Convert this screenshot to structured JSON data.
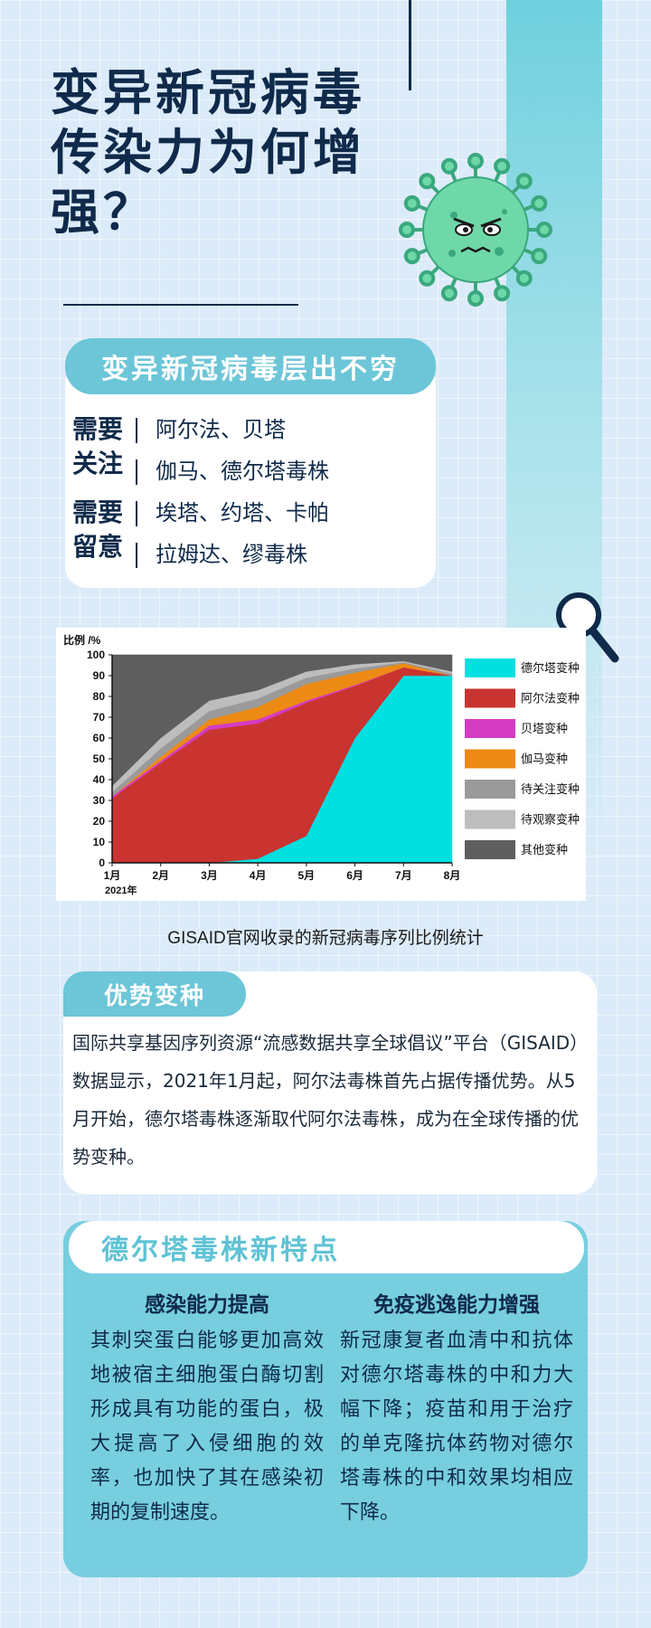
{
  "title": {
    "line1": "变异新冠病毒",
    "line2": "传染力为何增",
    "line3": "强？"
  },
  "variants": {
    "header": "变异新冠病毒层出不穷",
    "groups": [
      {
        "label1": "需要",
        "label2": "关注",
        "items": [
          "阿尔法、贝塔",
          "伽马、德尔塔毒株"
        ]
      },
      {
        "label1": "需要",
        "label2": "留意",
        "items": [
          "埃塔、约塔、卡帕",
          "拉姆达、缪毒株"
        ]
      }
    ]
  },
  "chart_data": {
    "type": "area",
    "stacked": true,
    "ylabel": "比例 /%",
    "year_label": "2021年",
    "ylim": [
      0,
      100
    ],
    "yticks": [
      "0",
      "10",
      "20",
      "30",
      "40",
      "50",
      "60",
      "70",
      "80",
      "90",
      "100"
    ],
    "categories": [
      "1月",
      "2月",
      "3月",
      "4月",
      "5月",
      "6月",
      "7月",
      "8月"
    ],
    "legend_position": "right",
    "series": [
      {
        "name": "德尔塔变种",
        "color": "#00e0e0",
        "values": [
          0,
          0,
          0,
          2,
          13,
          60,
          90,
          90
        ]
      },
      {
        "name": "阿尔法变种",
        "color": "#c93430",
        "values": [
          31,
          48,
          64,
          65,
          64,
          25,
          4,
          0
        ]
      },
      {
        "name": "贝塔变种",
        "color": "#d43cc4",
        "values": [
          1,
          1,
          2,
          2,
          1,
          0.5,
          0,
          0
        ]
      },
      {
        "name": "伽马变种",
        "color": "#ec8a14",
        "values": [
          0,
          2,
          3,
          6,
          8,
          6,
          2,
          0
        ]
      },
      {
        "name": "待关注变种",
        "color": "#9a9a9a",
        "values": [
          2,
          4,
          4,
          4,
          3,
          2,
          0.5,
          1
        ]
      },
      {
        "name": "待观察变种",
        "color": "#bdbdbd",
        "values": [
          3,
          5,
          5,
          4,
          3,
          2,
          0.5,
          1
        ]
      },
      {
        "name": "其他变种",
        "color": "#5e5e5e",
        "values": [
          63,
          40,
          22,
          17,
          8,
          4.5,
          3,
          8
        ]
      }
    ]
  },
  "chart_caption": "GISAID官网收录的新冠病毒序列比例统计",
  "dominant": {
    "header": "优势变种",
    "text": "国际共享基因序列资源“流感数据共享全球倡议”平台（GISAID）数据显示，2021年1月起，阿尔法毒株首先占据传播优势。从5月开始，德尔塔毒株逐渐取代阿尔法毒株，成为在全球传播的优势变种。"
  },
  "delta": {
    "header": "德尔塔毒株新特点",
    "col1": {
      "title": "感染能力提高",
      "text": "其刺突蛋白能够更加高效地被宿主细胞蛋白酶切割形成具有功能的蛋白，极大提高了入侵细胞的效率，也加快了其在感染初期的复制速度。"
    },
    "col2": {
      "title": "免疫逃逸能力增强",
      "text": "新冠康复者血清中和抗体对德尔塔毒株的中和力大幅下降；疫苗和用于治疗的单克隆抗体药物对德尔塔毒株的中和效果均相应下降。"
    }
  },
  "icons": {
    "virus": "virus-icon",
    "magnifier": "magnifier-icon"
  },
  "colors": {
    "accent": "#6cc6d8",
    "navy": "#0f2a4a"
  }
}
